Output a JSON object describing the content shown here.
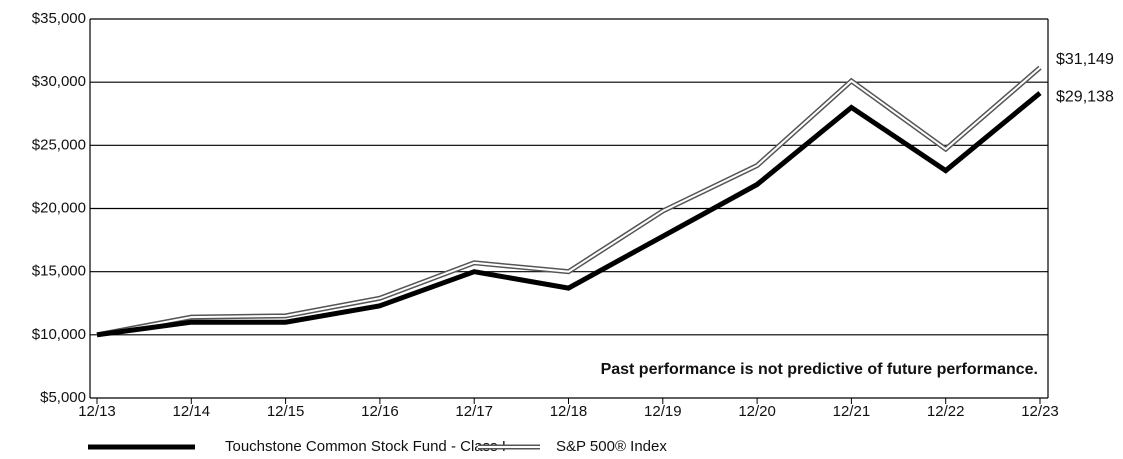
{
  "chart_data": {
    "type": "line",
    "categories": [
      "12/13",
      "12/14",
      "12/15",
      "12/16",
      "12/17",
      "12/18",
      "12/19",
      "12/20",
      "12/21",
      "12/22",
      "12/23"
    ],
    "series": [
      {
        "name": "Touchstone Common Stock Fund - Class I",
        "color": "#000000",
        "style": "solid",
        "values": [
          10000,
          11000,
          11000,
          12300,
          15000,
          13700,
          17800,
          21900,
          28000,
          23000,
          29138
        ],
        "value_labels": [
          null,
          null,
          null,
          null,
          null,
          null,
          null,
          null,
          null,
          null,
          "$29,138"
        ]
      },
      {
        "name": "S&P 500® Index",
        "color": "#555555",
        "style": "double",
        "values": [
          10000,
          11400,
          11500,
          12900,
          15700,
          15000,
          19800,
          23400,
          30100,
          24700,
          31149
        ],
        "value_labels": [
          null,
          null,
          null,
          null,
          null,
          null,
          null,
          null,
          null,
          null,
          "$31,149"
        ]
      }
    ],
    "ylim": [
      5000,
      35000
    ],
    "yticks": [
      {
        "value": 5000,
        "label": "$5,000"
      },
      {
        "value": 10000,
        "label": "$10,000"
      },
      {
        "value": 15000,
        "label": "$15,000"
      },
      {
        "value": 20000,
        "label": "$20,000"
      },
      {
        "value": 25000,
        "label": "$25,000"
      },
      {
        "value": 30000,
        "label": "$30,000"
      },
      {
        "value": 35000,
        "label": "$35,000"
      }
    ],
    "grid": true,
    "legend": "bottom",
    "annotation": "Past performance is not predictive of future performance."
  }
}
